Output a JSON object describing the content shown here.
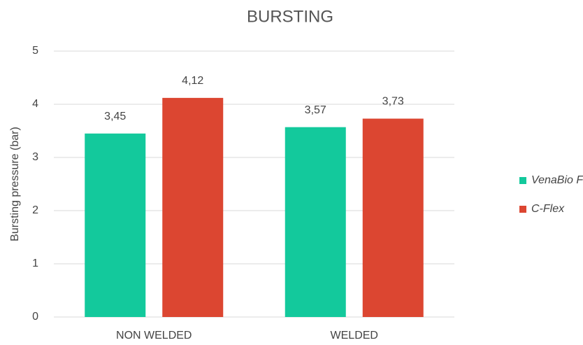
{
  "chart_data": {
    "type": "bar",
    "title": "BURSTING",
    "y_label": "Bursting pressure (bar)",
    "categories": [
      "NON WELDED",
      "WELDED"
    ],
    "series": [
      {
        "name": "VenaBio Flex",
        "color": "#13c99c",
        "values": [
          3.45,
          3.57
        ],
        "value_labels": [
          "3,45",
          "3,57"
        ]
      },
      {
        "name": "C-Flex",
        "color": "#dc4631",
        "values": [
          4.12,
          3.73
        ],
        "value_labels": [
          "4,12",
          "3,73"
        ]
      }
    ],
    "ylim": [
      0,
      5
    ],
    "yticks": [
      0,
      1,
      2,
      3,
      4,
      5
    ],
    "grid": true,
    "legend": "right"
  }
}
